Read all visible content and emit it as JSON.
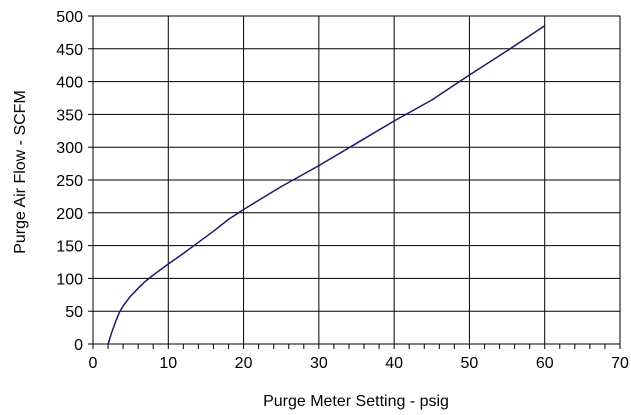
{
  "chart_data": {
    "type": "line",
    "title": "",
    "xlabel": "Purge Meter Setting - psig",
    "ylabel": "Purge Air Flow - SCFM",
    "xlim": [
      0,
      70
    ],
    "ylim": [
      0,
      500
    ],
    "x_ticks": [
      0,
      10,
      20,
      30,
      40,
      50,
      60,
      70
    ],
    "y_ticks": [
      0,
      50,
      100,
      150,
      200,
      250,
      300,
      350,
      400,
      450,
      500
    ],
    "x_tick_labels": [
      "0",
      "10",
      "20",
      "30",
      "40",
      "50",
      "60",
      "70"
    ],
    "y_tick_labels": [
      "0",
      "50",
      "100",
      "150",
      "200",
      "250",
      "300",
      "350",
      "400",
      "450",
      "500"
    ],
    "grid": true,
    "line_color": "#1a1a6e",
    "series": [
      {
        "name": "",
        "x": [
          2,
          2.5,
          3,
          3.5,
          4,
          5,
          6,
          7,
          8,
          10,
          12,
          14,
          16,
          18,
          20,
          25,
          30,
          35,
          40,
          45,
          50,
          55,
          60
        ],
        "y": [
          0,
          18,
          34,
          48,
          58,
          73,
          85,
          96,
          105,
          122,
          138,
          155,
          172,
          190,
          205,
          240,
          272,
          306,
          340,
          372,
          410,
          447,
          485
        ]
      }
    ]
  }
}
